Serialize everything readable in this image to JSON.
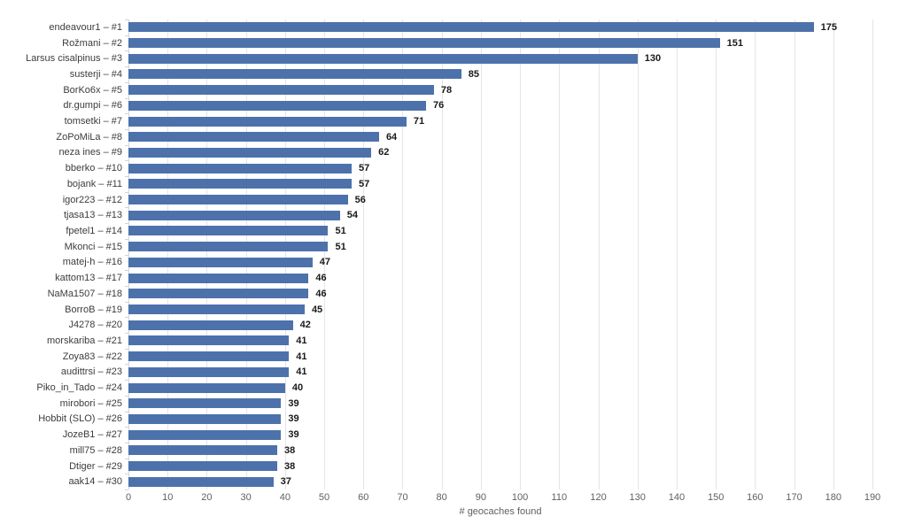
{
  "chart": {
    "background": "#ffffff",
    "bar_color": "#4d72ab",
    "gridline_color": "#e5e5e5",
    "axis_line_color": "#cfd8e2",
    "value_label_color": "#1a1a1a",
    "category_label_color": "#3c3c3c",
    "tick_label_color": "#606060",
    "axis_title_color": "#606060"
  },
  "chart_data": {
    "type": "bar",
    "orientation": "horizontal",
    "title": "",
    "xlabel": "# geocaches found",
    "ylabel": "",
    "xlim": [
      0,
      190
    ],
    "xticks": [
      0,
      10,
      20,
      30,
      40,
      50,
      60,
      70,
      80,
      90,
      100,
      110,
      120,
      130,
      140,
      150,
      160,
      170,
      180,
      190
    ],
    "grid": true,
    "legend": false,
    "categories": [
      "endeavour1 – #1",
      "Rožmani – #2",
      "Larsus cisalpinus – #3",
      "susterji – #4",
      "BorKo6x – #5",
      "dr.gumpi – #6",
      "tomsetki – #7",
      "ZoPoMiLa – #8",
      "neza ines – #9",
      "bberko – #10",
      "bojank – #11",
      "igor223 – #12",
      "tjasa13 – #13",
      "fpetel1 – #14",
      "Mkonci – #15",
      "matej-h – #16",
      "kattom13 – #17",
      "NaMa1507 – #18",
      "BorroB – #19",
      "J4278 – #20",
      "morskariba – #21",
      "Zoya83 – #22",
      "audittrsi – #23",
      "Piko_in_Tado – #24",
      "mirobori – #25",
      "Hobbit (SLO) – #26",
      "JozeB1 – #27",
      "mill75 – #28",
      "Dtiger – #29",
      "aak14 – #30"
    ],
    "values": [
      175,
      151,
      130,
      85,
      78,
      76,
      71,
      64,
      62,
      57,
      57,
      56,
      54,
      51,
      51,
      47,
      46,
      46,
      45,
      42,
      41,
      41,
      41,
      40,
      39,
      39,
      39,
      38,
      38,
      37
    ]
  }
}
